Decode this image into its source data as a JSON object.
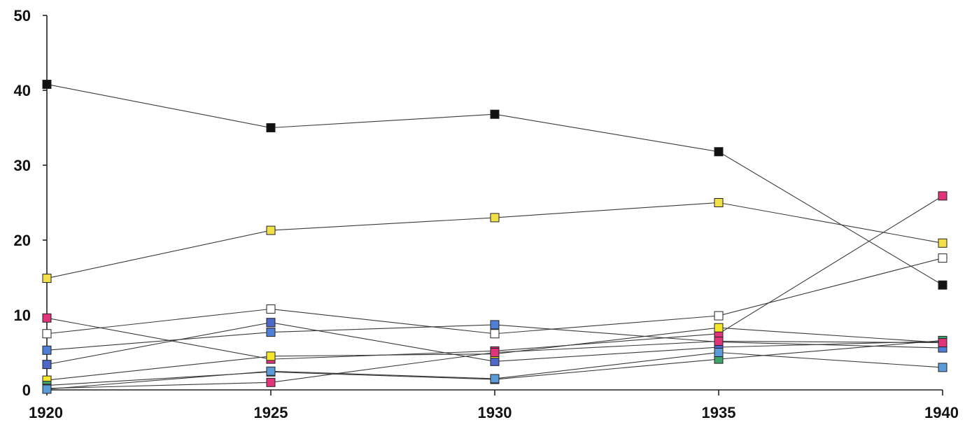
{
  "chart_data": {
    "type": "line",
    "title": "",
    "xlabel": "",
    "ylabel": "",
    "x": [
      1920,
      1925,
      1930,
      1935,
      1940
    ],
    "x_ticks": [
      "1920",
      "1925",
      "1930",
      "1935",
      "1940"
    ],
    "y_ticks": [
      "0",
      "10",
      "20",
      "30",
      "40",
      "50"
    ],
    "ylim": [
      0,
      50
    ],
    "grid": false,
    "legend": "none",
    "series": [
      {
        "color": "#111111",
        "values": [
          40.8,
          35.0,
          36.8,
          31.8,
          14.0
        ]
      },
      {
        "color": "#f2e04a",
        "values": [
          14.9,
          21.3,
          23.0,
          25.0,
          19.6
        ]
      },
      {
        "color": "#ffffff",
        "values": [
          7.5,
          10.8,
          7.5,
          9.9,
          17.6
        ]
      },
      {
        "color": "#e0357a",
        "values": [
          9.6,
          4.1,
          5.2,
          7.5,
          25.9
        ]
      },
      {
        "color": "#4f7ed6",
        "values": [
          5.3,
          7.7,
          8.7,
          6.4,
          5.6
        ]
      },
      {
        "color": "#4f67c8",
        "values": [
          3.4,
          9.0,
          3.8,
          5.7,
          6.5
        ]
      },
      {
        "color": "#f5e82c",
        "values": [
          1.3,
          4.5,
          4.8,
          8.3,
          6.3
        ]
      },
      {
        "color": "#3fa46a",
        "values": [
          0.6,
          2.4,
          1.4,
          4.1,
          6.6
        ]
      },
      {
        "color": "#e0357a",
        "values": [
          0.2,
          1.0,
          5.0,
          6.5,
          6.3
        ]
      },
      {
        "color": "#5b9bd8",
        "values": [
          0.1,
          2.5,
          1.5,
          5.0,
          3.0
        ]
      }
    ]
  }
}
